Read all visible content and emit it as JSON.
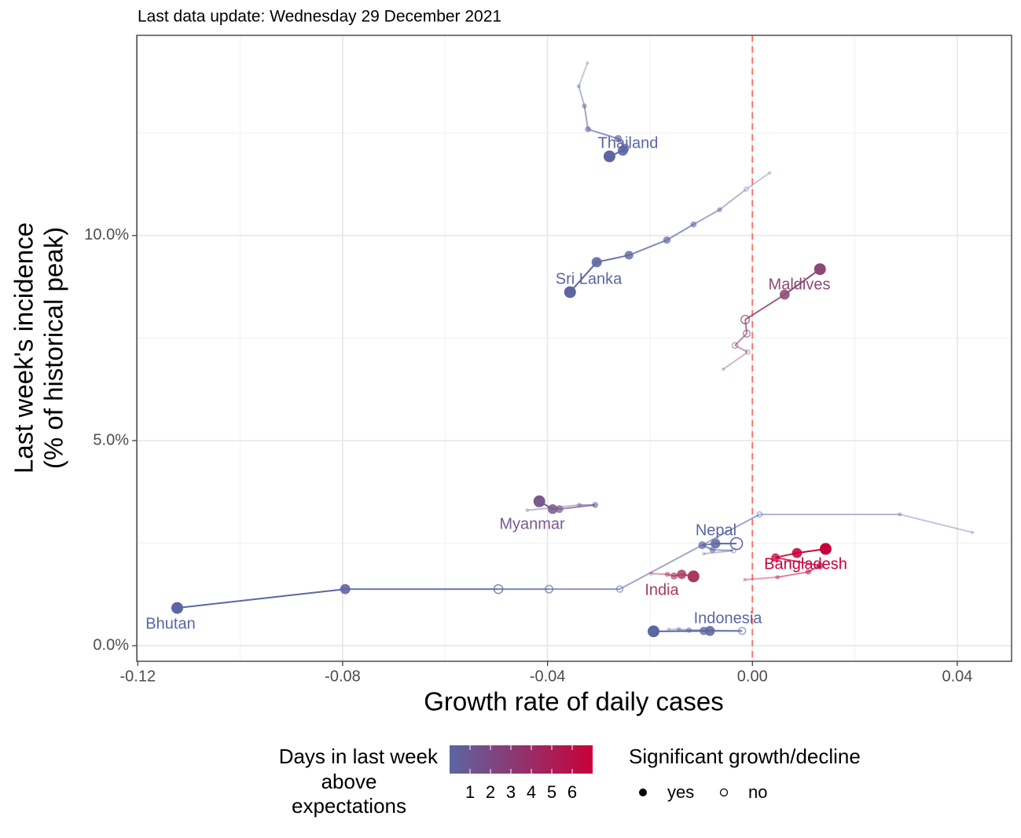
{
  "chart_data": {
    "type": "scatter",
    "title": "Last data update: Wednesday 29 December 2021",
    "xlabel": "Growth rate of daily cases",
    "ylabel": [
      "Last week's incidence",
      "(% of historical peak)"
    ],
    "xlim": [
      -0.1202,
      0.0506
    ],
    "ylim": [
      -0.38,
      14.88
    ],
    "xticks": [
      -0.12,
      -0.08,
      -0.04,
      {
        "value": 0,
        "label": "0.00"
      },
      0.04
    ],
    "yticks": [
      {
        "value": 0,
        "label": "0.0%"
      },
      {
        "value": 5,
        "label": "5.0%"
      },
      {
        "value": 10,
        "label": "10.0%"
      }
    ],
    "xminor": [
      -0.1,
      -0.06,
      -0.02,
      0.02
    ],
    "yminor": [
      2.5,
      7.5,
      12.5
    ],
    "grid": true,
    "reference_line": {
      "x": 0,
      "color": "#f8766d"
    },
    "series": [
      {
        "name": "Thailand",
        "color": "#5b66a2",
        "x": [
          -0.0322,
          -0.0339,
          -0.0328,
          -0.0321,
          -0.0262,
          -0.0249,
          -0.0253,
          -0.0279
        ],
        "y": [
          14.21,
          13.64,
          13.16,
          12.59,
          12.36,
          12.13,
          12.07,
          11.93
        ],
        "significant": [
          true,
          true,
          true,
          true,
          true,
          true,
          true,
          true
        ]
      },
      {
        "name": "Sri Lanka",
        "color": "#5b66a2",
        "x": [
          0.0034,
          -0.0012,
          -0.0064,
          -0.0115,
          -0.0167,
          -0.0241,
          -0.0304,
          -0.0356
        ],
        "y": [
          11.53,
          11.13,
          10.63,
          10.27,
          9.89,
          9.52,
          9.35,
          8.62
        ],
        "significant": [
          true,
          false,
          true,
          true,
          true,
          true,
          true,
          true
        ]
      },
      {
        "name": "Maldives",
        "color": "#8b4a74",
        "x": [
          -0.0057,
          -0.0009,
          -0.0034,
          -0.0011,
          -0.0014,
          0.0063,
          0.0132
        ],
        "y": [
          6.74,
          7.16,
          7.32,
          7.61,
          7.95,
          8.56,
          9.18
        ],
        "significant": [
          true,
          false,
          false,
          false,
          false,
          true,
          true
        ]
      },
      {
        "name": "Myanmar",
        "color": "#785a8e",
        "x": [
          -0.044,
          -0.0338,
          -0.0307,
          -0.0377,
          -0.039,
          -0.0416
        ],
        "y": [
          3.3,
          3.43,
          3.43,
          3.33,
          3.33,
          3.52
        ],
        "significant": [
          true,
          true,
          true,
          true,
          true,
          true
        ]
      },
      {
        "name": "Bhutan",
        "color": "#5b66a2",
        "x": [
          0.043,
          0.0288,
          0.0014,
          -0.0259,
          -0.0397,
          -0.0496,
          -0.0795,
          -0.1123
        ],
        "y": [
          2.76,
          3.2,
          3.2,
          1.38,
          1.38,
          1.38,
          1.38,
          0.92
        ],
        "significant": [
          true,
          true,
          false,
          false,
          false,
          false,
          true,
          true
        ]
      },
      {
        "name": "Nepal",
        "color": "#5b66a2",
        "x": [
          -0.0095,
          -0.0037,
          -0.0078,
          -0.0098,
          -0.0072,
          -0.0031
        ],
        "y": [
          2.24,
          2.32,
          2.34,
          2.45,
          2.49,
          2.49
        ],
        "significant": [
          true,
          false,
          true,
          true,
          true,
          false
        ]
      },
      {
        "name": "Indonesia",
        "color": "#5b66a2",
        "x": [
          -0.0164,
          -0.0144,
          -0.0124,
          -0.002,
          -0.0095,
          -0.0083,
          -0.0193
        ],
        "y": [
          0.4,
          0.4,
          0.38,
          0.36,
          0.36,
          0.36,
          0.35
        ],
        "significant": [
          true,
          true,
          true,
          false,
          true,
          true,
          true
        ]
      },
      {
        "name": "India",
        "color": "#a83a5d",
        "x": [
          -0.0198,
          -0.0166,
          -0.0153,
          -0.0138,
          -0.0115
        ],
        "y": [
          1.76,
          1.74,
          1.7,
          1.74,
          1.69
        ],
        "significant": [
          true,
          true,
          true,
          true,
          true
        ]
      },
      {
        "name": "Bangladesh",
        "color": "#c8003a",
        "x": [
          -0.0015,
          0.0049,
          0.0109,
          0.0132,
          0.0045,
          0.0087,
          0.0143
        ],
        "y": [
          1.61,
          1.67,
          1.8,
          1.95,
          2.15,
          2.26,
          2.36
        ],
        "significant": [
          true,
          true,
          true,
          true,
          true,
          true,
          true
        ]
      }
    ],
    "color_legend": {
      "title": [
        "Days in last week",
        "above",
        "expectations"
      ],
      "lim": [
        0,
        7
      ],
      "ticks": [
        1,
        2,
        3,
        4,
        5,
        6
      ],
      "low": "#5b66a2",
      "high": "#c8003a"
    },
    "shape_legend": {
      "title": "Significant growth/decline",
      "labels": [
        "yes",
        "no"
      ]
    }
  }
}
